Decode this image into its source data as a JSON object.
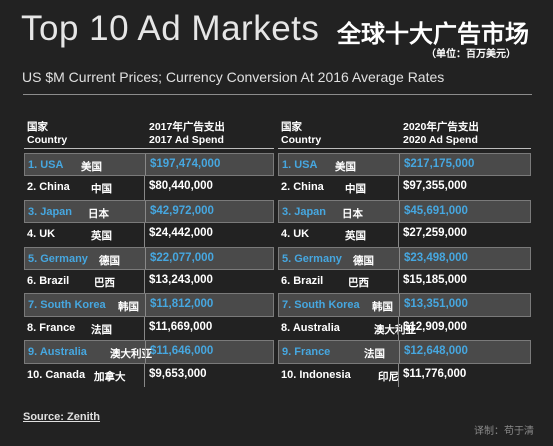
{
  "header": {
    "title": "Top 10 Ad Markets",
    "title_cn": "全球十大广告市场",
    "unit_cn": "（单位：百万美元）",
    "subtitle": "US $M Current Prices; Currency Conversion At 2016 Average Rates"
  },
  "table_2017": {
    "col1_cn": "国家",
    "col1": "Country",
    "col2_cn": "2017年广告支出",
    "col2": "2017 Ad Spend",
    "rows": [
      {
        "country": "1. USA",
        "cn": "美国",
        "value": "$197,474,000",
        "highlight": true
      },
      {
        "country": "2. China",
        "cn": "中国",
        "value": "$80,440,000",
        "highlight": false
      },
      {
        "country": "3. Japan",
        "cn": "日本",
        "value": "$42,972,000",
        "highlight": true
      },
      {
        "country": "4. UK",
        "cn": "英国",
        "value": "$24,442,000",
        "highlight": false
      },
      {
        "country": "5. Germany",
        "cn": "德国",
        "value": "$22,077,000",
        "highlight": true
      },
      {
        "country": "6. Brazil",
        "cn": "巴西",
        "value": "$13,243,000",
        "highlight": false
      },
      {
        "country": "7. South Korea",
        "cn": "韩国",
        "value": "$11,812,000",
        "highlight": true
      },
      {
        "country": "8. France",
        "cn": "法国",
        "value": "$11,669,000",
        "highlight": false
      },
      {
        "country": "9. Australia",
        "cn": "澳大利亚",
        "value": "$11,646,000",
        "highlight": true
      },
      {
        "country": "10. Canada",
        "cn": "加拿大",
        "value": "$9,653,000",
        "highlight": false
      }
    ]
  },
  "table_2020": {
    "col1_cn": "国家",
    "col1": "Country",
    "col2_cn": "2020年广告支出",
    "col2": "2020 Ad Spend",
    "rows": [
      {
        "country": "1. USA",
        "cn": "美国",
        "value": "$217,175,000",
        "highlight": true
      },
      {
        "country": "2. China",
        "cn": "中国",
        "value": "$97,355,000",
        "highlight": false
      },
      {
        "country": "3. Japan",
        "cn": "日本",
        "value": "$45,691,000",
        "highlight": true
      },
      {
        "country": "4. UK",
        "cn": "英国",
        "value": "$27,259,000",
        "highlight": false
      },
      {
        "country": "5. Germany",
        "cn": "德国",
        "value": "$23,498,000",
        "highlight": true
      },
      {
        "country": "6. Brazil",
        "cn": "巴西",
        "value": "$15,185,000",
        "highlight": false
      },
      {
        "country": "7. South Korea",
        "cn": "韩国",
        "value": "$13,351,000",
        "highlight": true
      },
      {
        "country": "8. Australia",
        "cn": "澳大利亚",
        "value": "$12,909,000",
        "highlight": false
      },
      {
        "country": "9. France",
        "cn": "法国",
        "value": "$12,648,000",
        "highlight": true
      },
      {
        "country": "10. Indonesia",
        "cn": "印尼",
        "value": "$11,776,000",
        "highlight": false
      }
    ]
  },
  "footer": {
    "source": "Source: Zenith",
    "translator": "译制：苟于清"
  },
  "colors": {
    "background": "#222222",
    "highlight_row": "#4a4a4a",
    "accent_blue": "#46a7e0"
  }
}
